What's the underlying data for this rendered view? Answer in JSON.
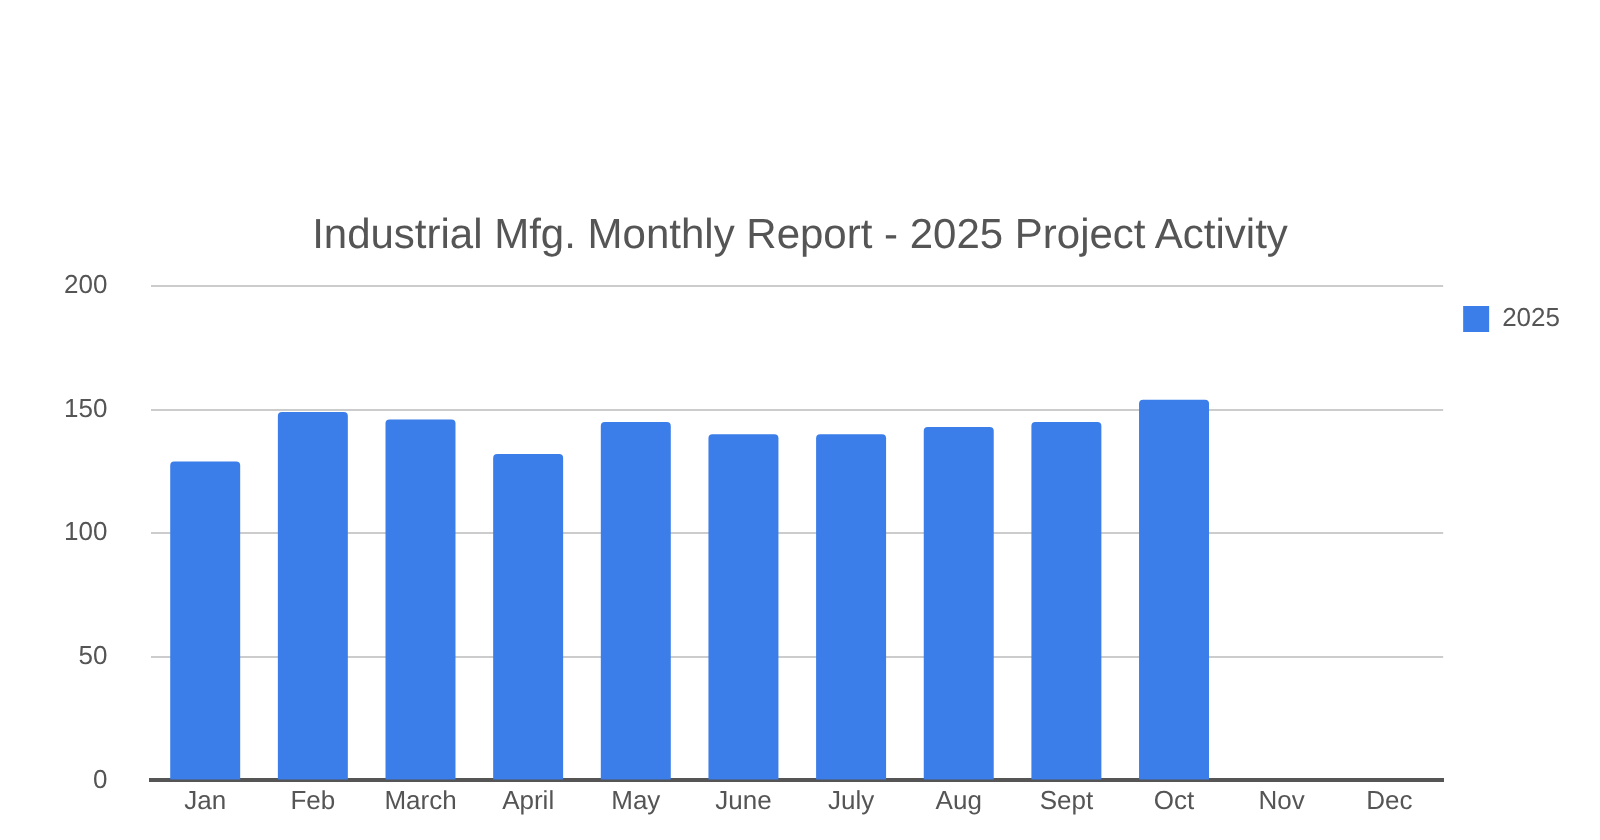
{
  "chart_data": {
    "type": "bar",
    "title": "Industrial Mfg. Monthly Report - 2025 Project Activity",
    "categories": [
      "Jan",
      "Feb",
      "March",
      "April",
      "May",
      "June",
      "July",
      "Aug",
      "Sept",
      "Oct",
      "Nov",
      "Dec"
    ],
    "series": [
      {
        "name": "2025",
        "color": "#3b7de9",
        "values": [
          129,
          149,
          146,
          132,
          145,
          140,
          140,
          143,
          145,
          154,
          null,
          null
        ]
      }
    ],
    "ylim": [
      0,
      200
    ],
    "yticks": [
      0,
      50,
      100,
      150,
      200
    ],
    "grid": "y",
    "legend": "top right"
  }
}
